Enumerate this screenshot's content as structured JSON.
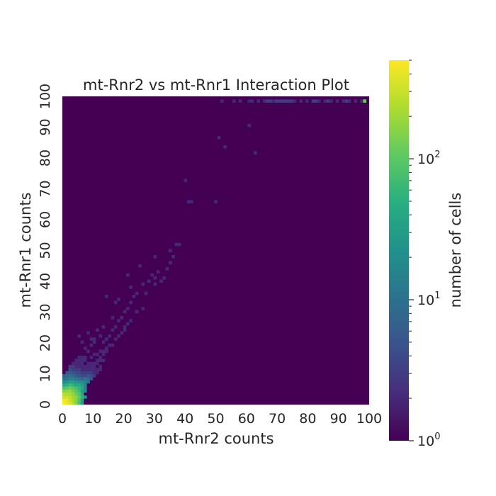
{
  "chart_data": {
    "type": "heatmap",
    "title": "mt-Rnr2 vs mt-Rnr1 Interaction Plot",
    "xlabel": "mt-Rnr2 counts",
    "ylabel": "mt-Rnr1 counts",
    "xlim": [
      0,
      100
    ],
    "ylim": [
      0,
      100
    ],
    "x_ticks": [
      "0",
      "10",
      "20",
      "30",
      "40",
      "50",
      "60",
      "70",
      "80",
      "90",
      "100"
    ],
    "y_ticks": [
      "0",
      "10",
      "20",
      "30",
      "40",
      "50",
      "60",
      "70",
      "80",
      "90",
      "100"
    ],
    "bin_size": 1,
    "background_count": 1,
    "colorbar": {
      "label": "number of cells",
      "scale": "log",
      "colormap": "viridis",
      "range": [
        1,
        500
      ],
      "tick_labels": [
        {
          "base": "10",
          "exp": "0",
          "value": 1
        },
        {
          "base": "10",
          "exp": "1",
          "value": 10
        },
        {
          "base": "10",
          "exp": "2",
          "value": 100
        }
      ]
    },
    "cells": [
      [
        0,
        0,
        500
      ],
      [
        1,
        0,
        400
      ],
      [
        0,
        1,
        450
      ],
      [
        1,
        1,
        420
      ],
      [
        2,
        1,
        300
      ],
      [
        1,
        2,
        320
      ],
      [
        2,
        2,
        280
      ],
      [
        0,
        2,
        300
      ],
      [
        3,
        2,
        200
      ],
      [
        2,
        3,
        220
      ],
      [
        3,
        3,
        180
      ],
      [
        4,
        3,
        120
      ],
      [
        3,
        4,
        130
      ],
      [
        4,
        4,
        100
      ],
      [
        5,
        4,
        70
      ],
      [
        4,
        5,
        80
      ],
      [
        5,
        5,
        60
      ],
      [
        6,
        5,
        40
      ],
      [
        5,
        6,
        45
      ],
      [
        6,
        6,
        30
      ],
      [
        7,
        6,
        20
      ],
      [
        6,
        7,
        22
      ],
      [
        7,
        7,
        15
      ],
      [
        8,
        7,
        10
      ],
      [
        7,
        8,
        12
      ],
      [
        8,
        8,
        8
      ],
      [
        9,
        8,
        5
      ],
      [
        8,
        9,
        6
      ],
      [
        9,
        9,
        4
      ],
      [
        10,
        9,
        3
      ],
      [
        9,
        10,
        3
      ],
      [
        10,
        10,
        2
      ],
      [
        11,
        10,
        2
      ],
      [
        10,
        11,
        2
      ],
      [
        3,
        0,
        250
      ],
      [
        4,
        0,
        150
      ],
      [
        5,
        0,
        80
      ],
      [
        6,
        0,
        30
      ],
      [
        0,
        3,
        260
      ],
      [
        0,
        4,
        150
      ],
      [
        0,
        5,
        90
      ],
      [
        0,
        6,
        40
      ],
      [
        4,
        1,
        160
      ],
      [
        5,
        1,
        90
      ],
      [
        6,
        1,
        35
      ],
      [
        1,
        4,
        170
      ],
      [
        1,
        5,
        100
      ],
      [
        1,
        6,
        50
      ],
      [
        3,
        1,
        230
      ],
      [
        1,
        3,
        240
      ],
      [
        2,
        0,
        350
      ],
      [
        0,
        7,
        20
      ],
      [
        0,
        8,
        10
      ],
      [
        0,
        9,
        6
      ],
      [
        1,
        7,
        25
      ],
      [
        1,
        8,
        12
      ],
      [
        2,
        4,
        180
      ],
      [
        4,
        2,
        170
      ],
      [
        2,
        5,
        120
      ],
      [
        5,
        2,
        110
      ],
      [
        2,
        6,
        70
      ],
      [
        6,
        2,
        60
      ],
      [
        3,
        5,
        100
      ],
      [
        5,
        3,
        90
      ],
      [
        3,
        6,
        55
      ],
      [
        6,
        3,
        45
      ],
      [
        2,
        7,
        35
      ],
      [
        7,
        2,
        25
      ],
      [
        3,
        7,
        30
      ],
      [
        4,
        6,
        40
      ],
      [
        6,
        4,
        35
      ],
      [
        4,
        7,
        25
      ],
      [
        7,
        4,
        18
      ],
      [
        5,
        7,
        22
      ],
      [
        7,
        5,
        16
      ],
      [
        3,
        8,
        15
      ],
      [
        4,
        8,
        12
      ],
      [
        5,
        8,
        10
      ],
      [
        6,
        8,
        8
      ],
      [
        2,
        8,
        15
      ],
      [
        2,
        9,
        10
      ],
      [
        3,
        9,
        8
      ],
      [
        4,
        9,
        6
      ],
      [
        5,
        9,
        5
      ],
      [
        1,
        9,
        8
      ],
      [
        1,
        10,
        5
      ],
      [
        2,
        10,
        6
      ],
      [
        3,
        10,
        5
      ],
      [
        4,
        10,
        4
      ],
      [
        5,
        10,
        4
      ],
      [
        6,
        10,
        3
      ],
      [
        7,
        10,
        3
      ],
      [
        8,
        10,
        3
      ],
      [
        6,
        9,
        4
      ],
      [
        7,
        9,
        4
      ],
      [
        8,
        11,
        2
      ],
      [
        9,
        11,
        2
      ],
      [
        7,
        11,
        2
      ],
      [
        6,
        11,
        2
      ],
      [
        5,
        11,
        3
      ],
      [
        4,
        11,
        3
      ],
      [
        3,
        11,
        3
      ],
      [
        2,
        11,
        4
      ],
      [
        2,
        12,
        3
      ],
      [
        3,
        12,
        3
      ],
      [
        4,
        12,
        2
      ],
      [
        5,
        12,
        2
      ],
      [
        6,
        12,
        2
      ],
      [
        7,
        12,
        2
      ],
      [
        3,
        13,
        2
      ],
      [
        4,
        13,
        2
      ],
      [
        5,
        13,
        2
      ],
      [
        6,
        13,
        2
      ],
      [
        4,
        14,
        2
      ],
      [
        5,
        14,
        2
      ],
      [
        6,
        14,
        2
      ],
      [
        7,
        14,
        2
      ],
      [
        5,
        15,
        2
      ],
      [
        6,
        15,
        2
      ],
      [
        7,
        15,
        2
      ],
      [
        8,
        12,
        2
      ],
      [
        9,
        12,
        2
      ],
      [
        10,
        12,
        2
      ],
      [
        11,
        11,
        2
      ],
      [
        12,
        11,
        2
      ],
      [
        12,
        12,
        2
      ],
      [
        8,
        13,
        2
      ],
      [
        9,
        13,
        2
      ],
      [
        10,
        13,
        2
      ],
      [
        11,
        14,
        2
      ],
      [
        12,
        14,
        2
      ],
      [
        13,
        14,
        2
      ],
      [
        9,
        15,
        2
      ],
      [
        10,
        16,
        2
      ],
      [
        11,
        16,
        2
      ],
      [
        12,
        17,
        2
      ],
      [
        13,
        17,
        2
      ],
      [
        14,
        18,
        2
      ],
      [
        15,
        19,
        2
      ],
      [
        16,
        19,
        2
      ],
      [
        8,
        17,
        2
      ],
      [
        7,
        18,
        2
      ],
      [
        6,
        20,
        2
      ],
      [
        5,
        22,
        2
      ],
      [
        9,
        19,
        2
      ],
      [
        10,
        21,
        2
      ],
      [
        13,
        20,
        2
      ],
      [
        14,
        21,
        2
      ],
      [
        15,
        22,
        2
      ],
      [
        16,
        24,
        2
      ],
      [
        17,
        25,
        2
      ],
      [
        18,
        27,
        2
      ],
      [
        12,
        22,
        2
      ],
      [
        13,
        25,
        2
      ],
      [
        19,
        28,
        2
      ],
      [
        20,
        30,
        2
      ],
      [
        21,
        31,
        2
      ],
      [
        22,
        33,
        2
      ],
      [
        23,
        35,
        2
      ],
      [
        24,
        36,
        2
      ],
      [
        14,
        35,
        2
      ],
      [
        17,
        33,
        2
      ],
      [
        18,
        34,
        2
      ],
      [
        16,
        28,
        2
      ],
      [
        20,
        25,
        2
      ],
      [
        22,
        27,
        2
      ],
      [
        24,
        30,
        2
      ],
      [
        26,
        31,
        2
      ],
      [
        28,
        40,
        2
      ],
      [
        29,
        42,
        2
      ],
      [
        30,
        41,
        2
      ],
      [
        30,
        39,
        2
      ],
      [
        31,
        43,
        2
      ],
      [
        32,
        40,
        2
      ],
      [
        33,
        41,
        2
      ],
      [
        34,
        44,
        2
      ],
      [
        35,
        46,
        2
      ],
      [
        36,
        48,
        2
      ],
      [
        37,
        52,
        2
      ],
      [
        38,
        52,
        2
      ],
      [
        35,
        50,
        2
      ],
      [
        30,
        48,
        2
      ],
      [
        25,
        45,
        2
      ],
      [
        21,
        42,
        2
      ],
      [
        22,
        38,
        2
      ],
      [
        26,
        39,
        2
      ],
      [
        27,
        36,
        2
      ],
      [
        11,
        13,
        2
      ],
      [
        12,
        15,
        2
      ],
      [
        13,
        16,
        2
      ],
      [
        14,
        17,
        2
      ],
      [
        17,
        21,
        2
      ],
      [
        18,
        22,
        2
      ],
      [
        19,
        23,
        2
      ],
      [
        20,
        24,
        2
      ],
      [
        21,
        26,
        2
      ],
      [
        10,
        20,
        2
      ],
      [
        9,
        21,
        2
      ],
      [
        8,
        23,
        2
      ],
      [
        11,
        24,
        2
      ],
      [
        40,
        73,
        2
      ],
      [
        41,
        66,
        2
      ],
      [
        42,
        66,
        2
      ],
      [
        50,
        66,
        2
      ],
      [
        51,
        87,
        2
      ],
      [
        53,
        84,
        2
      ],
      [
        61,
        91,
        2
      ],
      [
        63,
        82,
        2
      ],
      [
        52,
        99,
        2
      ],
      [
        56,
        99,
        2
      ],
      [
        58,
        99,
        2
      ],
      [
        61,
        99,
        2
      ],
      [
        62,
        99,
        2
      ],
      [
        64,
        99,
        2
      ],
      [
        66,
        99,
        2
      ],
      [
        67,
        99,
        3
      ],
      [
        68,
        99,
        3
      ],
      [
        69,
        99,
        2
      ],
      [
        70,
        99,
        3
      ],
      [
        71,
        99,
        3
      ],
      [
        72,
        99,
        3
      ],
      [
        73,
        99,
        3
      ],
      [
        74,
        99,
        3
      ],
      [
        75,
        99,
        3
      ],
      [
        76,
        99,
        2
      ],
      [
        78,
        99,
        2
      ],
      [
        80,
        99,
        2
      ],
      [
        82,
        99,
        3
      ],
      [
        83,
        99,
        3
      ],
      [
        84,
        99,
        2
      ],
      [
        86,
        99,
        2
      ],
      [
        87,
        99,
        3
      ],
      [
        88,
        99,
        2
      ],
      [
        90,
        99,
        2
      ],
      [
        92,
        99,
        2
      ],
      [
        93,
        99,
        3
      ],
      [
        94,
        99,
        2
      ],
      [
        96,
        99,
        2
      ],
      [
        98,
        99,
        2
      ],
      [
        99,
        99,
        120
      ]
    ]
  }
}
